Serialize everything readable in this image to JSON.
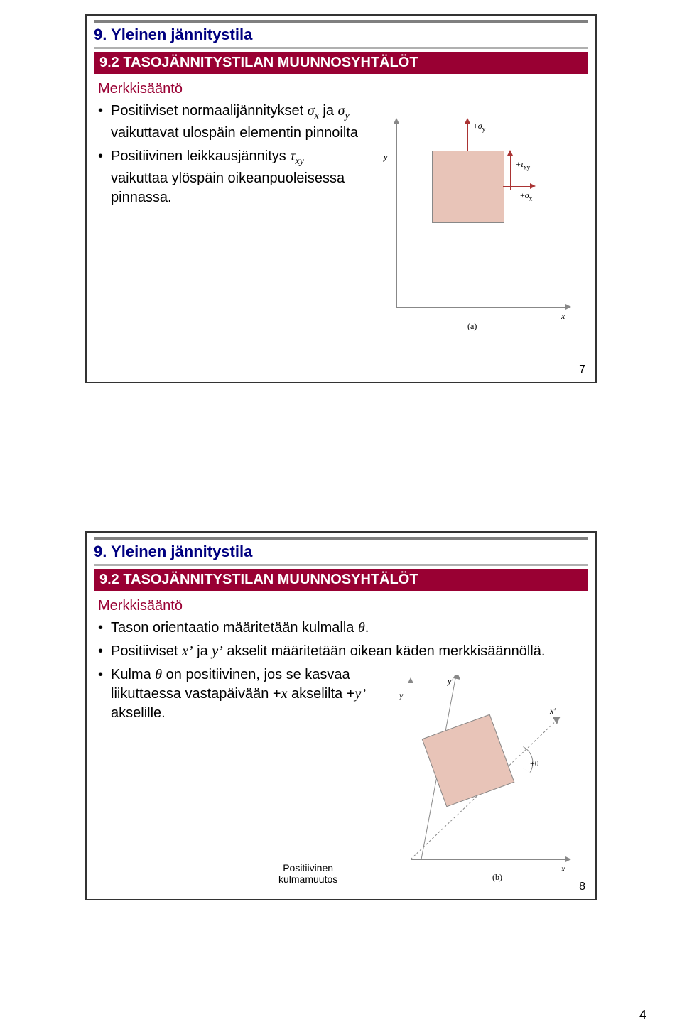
{
  "page_number": "4",
  "slides": [
    {
      "slide_num": "7",
      "chapter_title": "9. Yleinen jännitystila",
      "section_title": "9.2 TASOJÄNNITYSTILAN MUUNNOSYHTÄLÖT",
      "body_heading": "Merkkisääntö",
      "bullets": [
        "Positiiviset normaalijännitykset <span class='italic-sym'>σ</span><span class='sub'>x</span> ja <span class='italic-sym'>σ</span><span class='sub'>y</span> vaikuttavat ulospäin elementin pinnoilta",
        "Positiivinen leikkausjännitys <span class='italic-sym'>τ</span><span class='sub'>xy</span> vaikuttaa ylöspäin oikeanpuoleisessa pinnassa."
      ],
      "diagram": {
        "labels": {
          "sigma_y": "+σ",
          "sigma_y_sub": "y",
          "tau_xy": "+τ",
          "tau_xy_sub": "xy",
          "sigma_x": "+σ",
          "sigma_x_sub": "x",
          "axis_x": "x",
          "axis_y": "y",
          "fig_label": "(a)"
        },
        "colors": {
          "square_fill": "#e8c4b8",
          "square_border": "#888888",
          "axis": "#888888",
          "arrow": "#aa3333"
        }
      }
    },
    {
      "slide_num": "8",
      "chapter_title": "9. Yleinen jännitystila",
      "section_title": "9.2 TASOJÄNNITYSTILAN MUUNNOSYHTÄLÖT",
      "body_heading": "Merkkisääntö",
      "bullets": [
        "Tason orientaatio määritetään kulmalla <span class='italic-sym'>θ</span>.",
        "Positiiviset <span class='italic-sym'>x&rsquo;</span> ja <span class='italic-sym'>y&rsquo;</span> akselit määritetään oikean käden merkkisäännöllä.",
        "Kulma <span class='italic-sym'>θ</span> on positiivinen, jos se kasvaa liikuttaessa vastapäivään +<span class='italic-sym'>x</span> akselilta +<span class='italic-sym'>y&rsquo;</span> akselille."
      ],
      "caption": "Positiivinen\nkulmamuutos",
      "diagram": {
        "labels": {
          "axis_x": "x",
          "axis_y": "y",
          "axis_xp": "x′",
          "axis_yp": "y′",
          "theta": "+θ",
          "fig_label": "(b)"
        },
        "colors": {
          "square_fill": "#e8c4b8",
          "square_border": "#888888",
          "axis": "#888888"
        }
      }
    }
  ]
}
